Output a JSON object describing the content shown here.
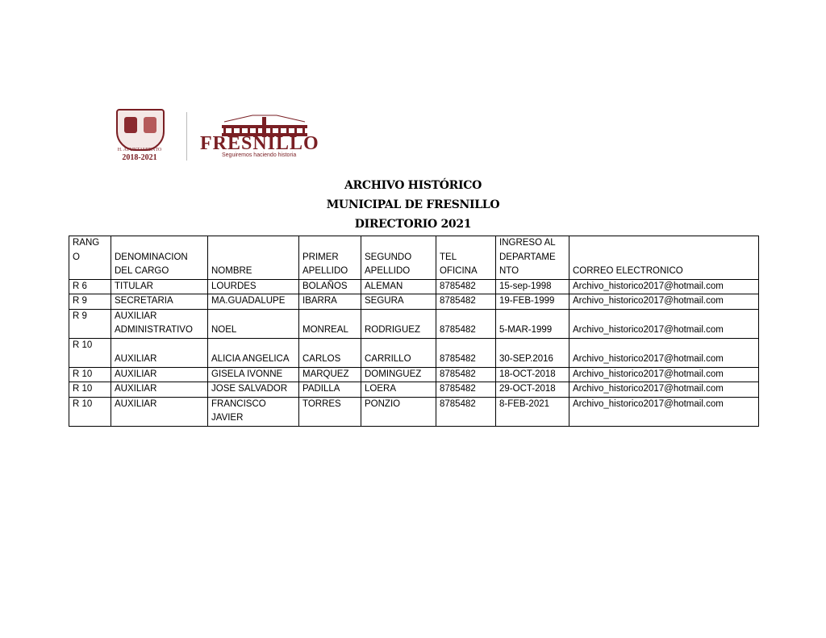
{
  "header": {
    "logo_left": {
      "text": "H. AYUNTAMIENTO",
      "years": "2018-2021"
    },
    "logo_right": {
      "name": "FRESNILLO",
      "slogan": "Seguiremos haciendo historia"
    },
    "title_lines": [
      "ARCHIVO  HISTÓRICO",
      "MUNICIPAL  DE FRESNILLO",
      "DIRECTORIO 2021"
    ]
  },
  "table": {
    "columns": [
      "RANG\nO",
      " DENOMINACION\nDEL CARGO",
      "   NOMBRE",
      "PRIMER\nAPELLIDO",
      "SEGUNDO\nAPELLIDO",
      "TEL\nOFICINA",
      "INGRESO AL\nDEPARTAME\nNTO",
      "         CORREO ELECTRONICO"
    ],
    "rows": [
      [
        "R 6",
        "TITULAR",
        "LOURDES",
        "BOLAÑOS",
        "ALEMAN",
        "8785482",
        "15-sep-1998",
        "Archivo_historico2017@hotmail.com"
      ],
      [
        "R 9",
        "SECRETARIA",
        "MA.GUADALUPE",
        "IBARRA",
        "SEGURA",
        "8785482",
        "19-FEB-1999",
        "Archivo_historico2017@hotmail.com"
      ],
      [
        "R 9",
        "AUXILIAR\nADMINISTRATIVO",
        "NOEL",
        "MONREAL",
        "RODRIGUEZ",
        "8785482",
        "5-MAR-1999",
        "Archivo_historico2017@hotmail.com"
      ],
      [
        "R 10",
        "AUXILIAR",
        "ALICIA ANGELICA",
        "CARLOS",
        "CARRILLO",
        "8785482",
        "30-SEP.2016",
        "Archivo_historico2017@hotmail.com"
      ],
      [
        "R 10",
        "AUXILIAR",
        "GISELA IVONNE",
        "MARQUEZ",
        "DOMINGUEZ",
        "8785482",
        "18-OCT-2018",
        "Archivo_historico2017@hotmail.com"
      ],
      [
        "R 10",
        "AUXILIAR",
        "JOSE SALVADOR",
        "PADILLA",
        "LOERA",
        "8785482",
        "29-OCT-2018",
        "Archivo_historico2017@hotmail.com"
      ],
      [
        "R 10",
        "AUXILIAR",
        "FRANCISCO\nJAVIER",
        "TORRES",
        "PONZIO",
        "8785482",
        "8-FEB-2021",
        "Archivo_historico2017@hotmail.com"
      ]
    ]
  }
}
